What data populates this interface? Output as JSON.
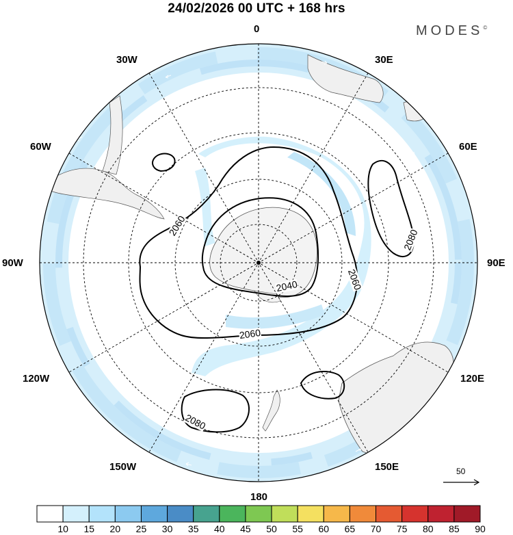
{
  "header": {
    "title": "24/02/2026  00 UTC  + 168 hrs",
    "brand": "MODES",
    "brand_mark": "©"
  },
  "map": {
    "projection": "south-polar-stereographic",
    "longitude_labels": [
      "0",
      "30E",
      "60E",
      "90E",
      "120E",
      "150E",
      "180",
      "150W",
      "120W",
      "90W",
      "60W",
      "30W"
    ],
    "contour_labels": [
      "2060",
      "2060",
      "2060",
      "2040",
      "2080",
      "2080"
    ]
  },
  "colorbar": {
    "ticks": [
      "10",
      "15",
      "20",
      "25",
      "30",
      "35",
      "40",
      "45",
      "50",
      "55",
      "60",
      "65",
      "70",
      "75",
      "80",
      "85",
      "90"
    ],
    "colors": [
      "#ffffff",
      "#d4f0fc",
      "#b3e3fb",
      "#8ccaf0",
      "#5ea8dd",
      "#4a8cc6",
      "#47a38f",
      "#4bb55c",
      "#7ec852",
      "#c0de5a",
      "#f4e060",
      "#f6b84a",
      "#f08a3a",
      "#e55a32",
      "#d6332e",
      "#bf2230",
      "#a01a28"
    ]
  },
  "vector_legend": {
    "label": "50"
  }
}
